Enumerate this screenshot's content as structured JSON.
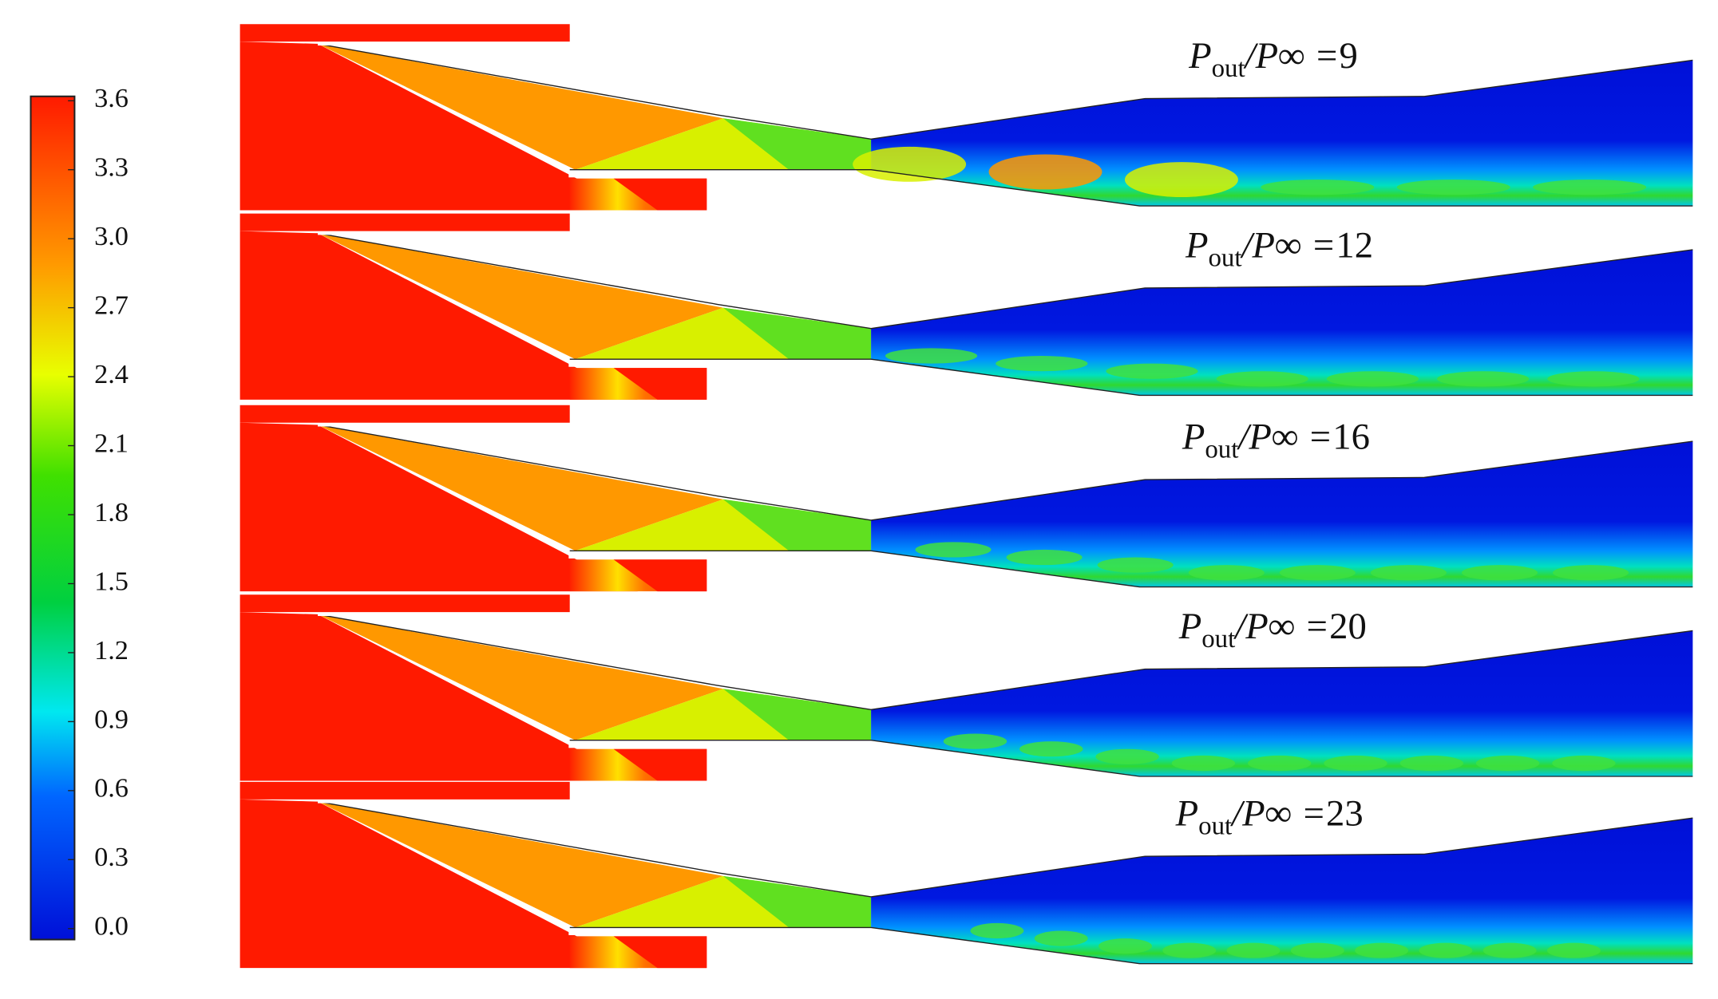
{
  "colorbar": {
    "ticks": [
      {
        "value": 0,
        "label": "0.0"
      },
      0.3,
      0.6,
      0.9,
      1.2,
      1.5,
      1.8,
      2.1,
      2.4,
      2.7,
      {
        "value": 3,
        "label": "3.0"
      },
      3.3,
      3.6
    ]
  },
  "label": {
    "symbol": "P",
    "subscript": "out",
    "separator": "/P∞ ="
  },
  "panels": [
    {
      "ratio": 9
    },
    {
      "ratio": 12
    },
    {
      "ratio": 16
    },
    {
      "ratio": 20
    },
    {
      "ratio": 23
    }
  ]
}
